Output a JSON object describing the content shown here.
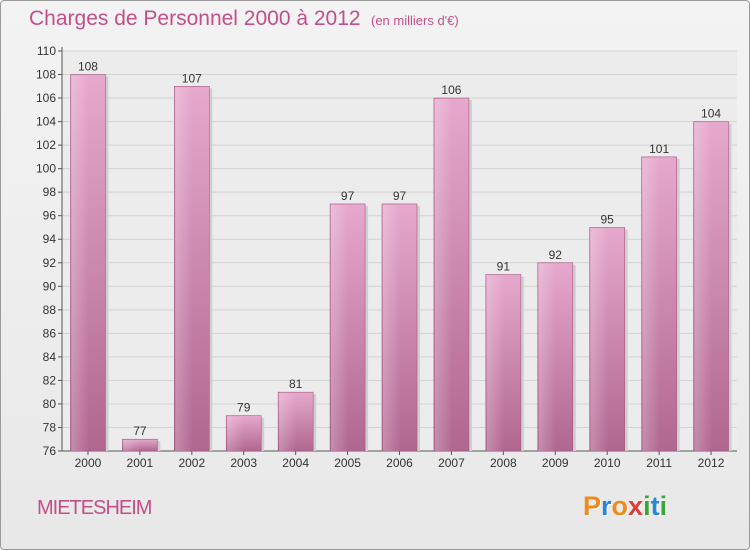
{
  "chart_data": {
    "type": "bar",
    "title": "Charges de Personnel 2000 à 2012",
    "subtitle": "(en milliers d'€)",
    "categories": [
      "2000",
      "2001",
      "2002",
      "2003",
      "2004",
      "2005",
      "2006",
      "2007",
      "2008",
      "2009",
      "2010",
      "2011",
      "2012"
    ],
    "values": [
      108,
      77,
      107,
      79,
      81,
      97,
      97,
      106,
      91,
      92,
      95,
      101,
      104
    ],
    "ylim": [
      76,
      110
    ],
    "yticks": [
      76,
      78,
      80,
      82,
      84,
      86,
      88,
      90,
      92,
      94,
      96,
      98,
      100,
      102,
      104,
      106,
      108,
      110
    ],
    "grid": true,
    "bar_color": "#c97aa8"
  },
  "footer": {
    "commune": "MIETESHEIM",
    "logo": "Proxiti",
    "logo_letters": [
      "P",
      "r",
      "o",
      "x",
      "i",
      "t",
      "i"
    ],
    "logo_colors": [
      "#f08a1c",
      "#2a86d6",
      "#f08a1c",
      "#e03a3a",
      "#3aa63a",
      "#2a86d6",
      "#3aa63a"
    ]
  }
}
